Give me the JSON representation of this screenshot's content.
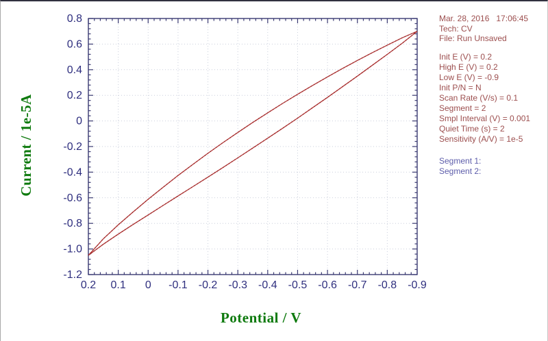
{
  "window": {
    "background": "#ffffff"
  },
  "info_panel": {
    "text_color": "#9c4e4e",
    "segment_text_color": "#5c5caa",
    "header_lines": [
      "Mar. 28, 2016   17:06:45",
      "Tech: CV",
      "File: Run Unsaved"
    ],
    "param_lines": [
      "Init E (V) = 0.2",
      "High E (V) = 0.2",
      "Low E (V) = -0.9",
      "Init P/N = N",
      "Scan Rate (V/s) = 0.1",
      "Segment = 2",
      "Smpl Interval (V) = 0.001",
      "Quiet Time (s) = 2",
      "Sensitivity (A/V) = 1e-5"
    ],
    "segment_lines": [
      "Segment 1:",
      "Segment 2:"
    ]
  },
  "chart_data": {
    "type": "line",
    "title": "",
    "xlabel": "Potential / V",
    "ylabel": "Current / 1e-5A",
    "x_axis_reversed": true,
    "xlim": [
      0.2,
      -0.9
    ],
    "ylim": [
      -1.2,
      0.8
    ],
    "x_tick_labels": [
      "0.2",
      "0.1",
      "0",
      "-0.1",
      "-0.2",
      "-0.3",
      "-0.4",
      "-0.5",
      "-0.6",
      "-0.7",
      "-0.8",
      "-0.9"
    ],
    "y_tick_labels": [
      "0.8",
      "0.6",
      "0.4",
      "0.2",
      "0",
      "-0.2",
      "-0.4",
      "-0.6",
      "-0.8",
      "-1.0",
      "-1.2"
    ],
    "minor_divisions_per_major": 5,
    "grid": "dotted-at-major-ticks",
    "legend": "none",
    "x": [
      0.2,
      0.15,
      0.1,
      0.05,
      0,
      -0.05,
      -0.1,
      -0.15,
      -0.2,
      -0.25,
      -0.3,
      -0.35,
      -0.4,
      -0.45,
      -0.5,
      -0.55,
      -0.6,
      -0.65,
      -0.7,
      -0.75,
      -0.8,
      -0.85,
      -0.9
    ],
    "series": [
      {
        "name": "segment-1-forward-scan-lower-branch",
        "values": [
          -1.05,
          -0.963,
          -0.884,
          -0.808,
          -0.734,
          -0.66,
          -0.586,
          -0.513,
          -0.439,
          -0.364,
          -0.288,
          -0.212,
          -0.135,
          -0.057,
          0.022,
          0.103,
          0.184,
          0.267,
          0.35,
          0.435,
          0.52,
          0.607,
          0.7
        ]
      },
      {
        "name": "segment-2-reverse-scan-upper-branch",
        "values": [
          -1.05,
          -0.921,
          -0.812,
          -0.71,
          -0.612,
          -0.518,
          -0.426,
          -0.339,
          -0.253,
          -0.17,
          -0.09,
          -0.012,
          0.063,
          0.137,
          0.208,
          0.277,
          0.344,
          0.409,
          0.472,
          0.533,
          0.592,
          0.649,
          0.7
        ]
      }
    ],
    "colors": {
      "curve": "#b13434",
      "curve_dots": "#8d2525",
      "axis_frame": "#3a3a72",
      "tick_labels": "#2e2e7e",
      "axis_titles": "#0e7a0e",
      "grid": "#c9cedb"
    }
  }
}
